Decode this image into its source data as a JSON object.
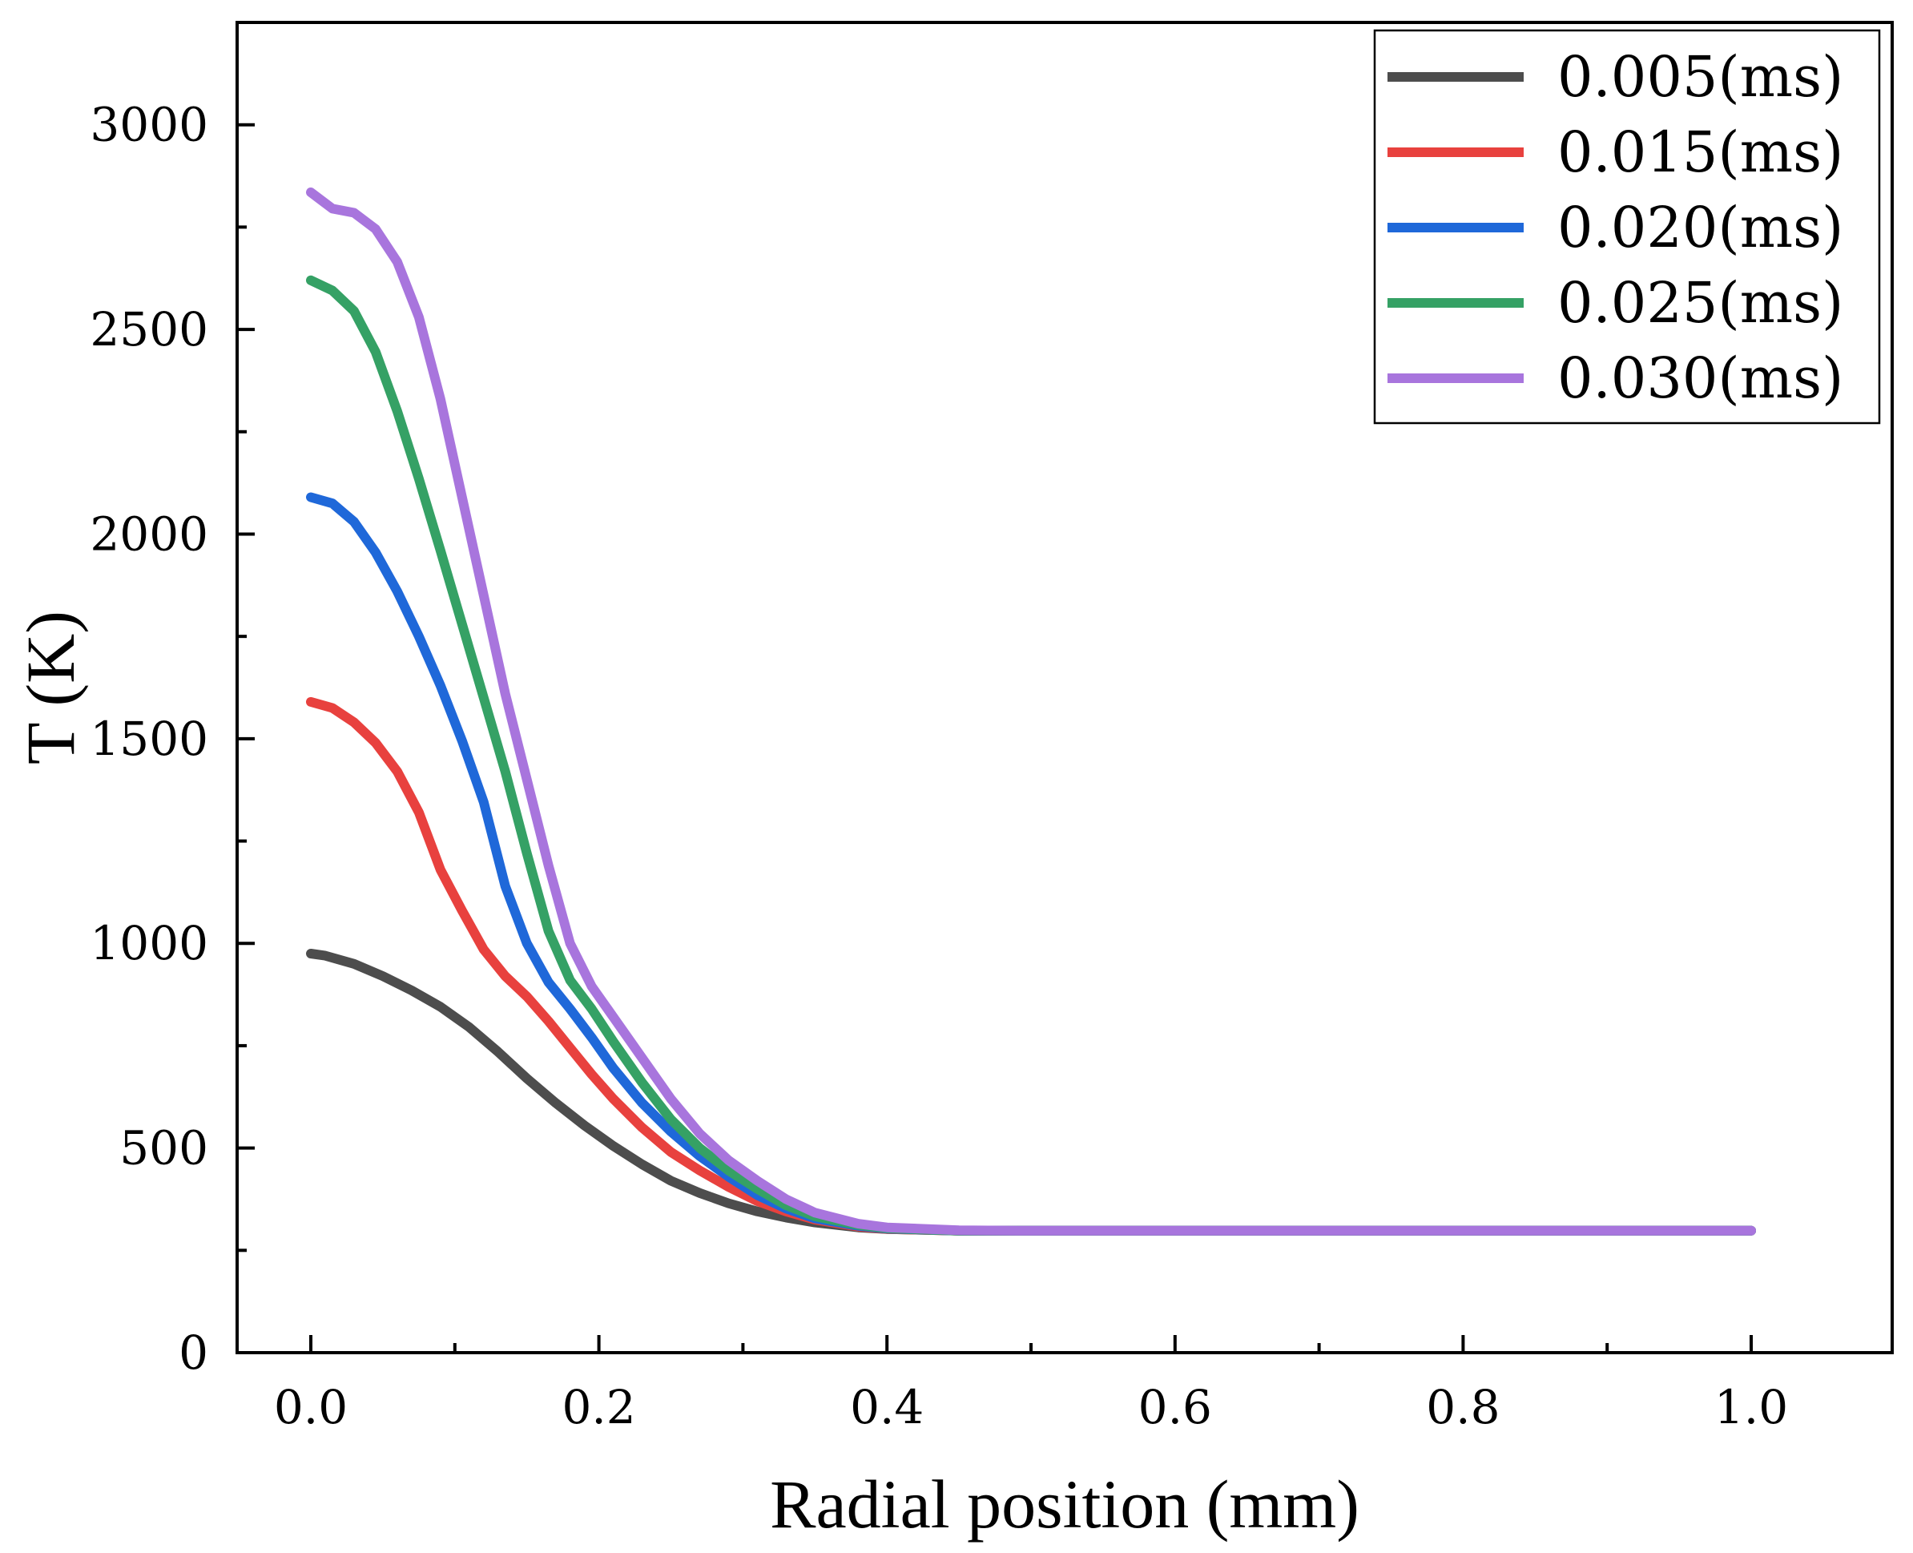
{
  "chart_data": {
    "type": "line",
    "title": "",
    "xlabel": "Radial position (mm)",
    "ylabel": "T (K)",
    "xlim": [
      -0.05,
      1.1
    ],
    "ylim": [
      0,
      3250
    ],
    "xticks": [
      0.0,
      0.2,
      0.4,
      0.6,
      0.8,
      1.0
    ],
    "xtick_labels": [
      "0.0",
      "0.2",
      "0.4",
      "0.6",
      "0.8",
      "1.0"
    ],
    "yticks": [
      0,
      500,
      1000,
      1500,
      2000,
      2500,
      3000
    ],
    "ytick_labels": [
      "0",
      "500",
      "1000",
      "1500",
      "2000",
      "2500",
      "3000"
    ],
    "legend_position": "top-right",
    "series": [
      {
        "name": "0.005(ms)",
        "color": "#4d4d4d",
        "x": [
          0,
          0.01,
          0.03,
          0.05,
          0.07,
          0.09,
          0.11,
          0.13,
          0.15,
          0.17,
          0.19,
          0.21,
          0.23,
          0.25,
          0.27,
          0.29,
          0.31,
          0.33,
          0.35,
          0.38,
          0.4,
          0.45,
          0.5,
          0.6,
          0.8,
          1.0
        ],
        "y": [
          975,
          970,
          950,
          920,
          885,
          845,
          795,
          735,
          670,
          610,
          555,
          505,
          460,
          420,
          390,
          365,
          345,
          330,
          318,
          306,
          302,
          298,
          298,
          298,
          298,
          298
        ]
      },
      {
        "name": "0.015(ms)",
        "color": "#e8413e",
        "x": [
          0,
          0.015,
          0.03,
          0.045,
          0.06,
          0.075,
          0.09,
          0.105,
          0.12,
          0.135,
          0.15,
          0.165,
          0.18,
          0.195,
          0.21,
          0.23,
          0.25,
          0.27,
          0.29,
          0.31,
          0.33,
          0.35,
          0.38,
          0.4,
          0.45,
          0.5,
          0.6,
          0.8,
          1.0
        ],
        "y": [
          1590,
          1575,
          1540,
          1490,
          1420,
          1320,
          1180,
          1080,
          985,
          920,
          870,
          810,
          745,
          680,
          620,
          550,
          490,
          445,
          405,
          370,
          345,
          325,
          308,
          302,
          298,
          298,
          298,
          298,
          298
        ]
      },
      {
        "name": "0.020(ms)",
        "color": "#1f68d9",
        "x": [
          0,
          0.015,
          0.03,
          0.045,
          0.06,
          0.075,
          0.09,
          0.105,
          0.12,
          0.135,
          0.15,
          0.165,
          0.18,
          0.195,
          0.21,
          0.23,
          0.25,
          0.27,
          0.29,
          0.31,
          0.33,
          0.35,
          0.38,
          0.4,
          0.45,
          0.5,
          0.6,
          0.8,
          1.0
        ],
        "y": [
          2090,
          2075,
          2030,
          1955,
          1860,
          1750,
          1630,
          1495,
          1345,
          1140,
          1000,
          905,
          840,
          770,
          695,
          610,
          540,
          480,
          430,
          385,
          352,
          328,
          310,
          303,
          298,
          298,
          298,
          298,
          298
        ]
      },
      {
        "name": "0.025(ms)",
        "color": "#35a165",
        "x": [
          0,
          0.015,
          0.03,
          0.045,
          0.06,
          0.075,
          0.09,
          0.105,
          0.12,
          0.135,
          0.15,
          0.165,
          0.18,
          0.195,
          0.21,
          0.23,
          0.25,
          0.27,
          0.29,
          0.31,
          0.33,
          0.35,
          0.38,
          0.4,
          0.45,
          0.5,
          0.6,
          0.8,
          1.0
        ],
        "y": [
          2620,
          2595,
          2545,
          2445,
          2300,
          2135,
          1960,
          1780,
          1600,
          1420,
          1220,
          1030,
          910,
          840,
          760,
          660,
          570,
          500,
          445,
          400,
          360,
          333,
          312,
          304,
          298,
          298,
          298,
          298,
          298
        ]
      },
      {
        "name": "0.030(ms)",
        "color": "#a875dd",
        "x": [
          0,
          0.015,
          0.03,
          0.045,
          0.06,
          0.075,
          0.09,
          0.105,
          0.12,
          0.135,
          0.15,
          0.165,
          0.18,
          0.195,
          0.21,
          0.23,
          0.25,
          0.27,
          0.29,
          0.31,
          0.33,
          0.35,
          0.38,
          0.4,
          0.45,
          0.5,
          0.6,
          0.8,
          1.0
        ],
        "y": [
          2835,
          2795,
          2785,
          2745,
          2665,
          2530,
          2330,
          2090,
          1850,
          1610,
          1400,
          1190,
          1000,
          895,
          820,
          720,
          620,
          535,
          470,
          420,
          375,
          342,
          315,
          306,
          299,
          298,
          298,
          298,
          298
        ]
      }
    ]
  }
}
